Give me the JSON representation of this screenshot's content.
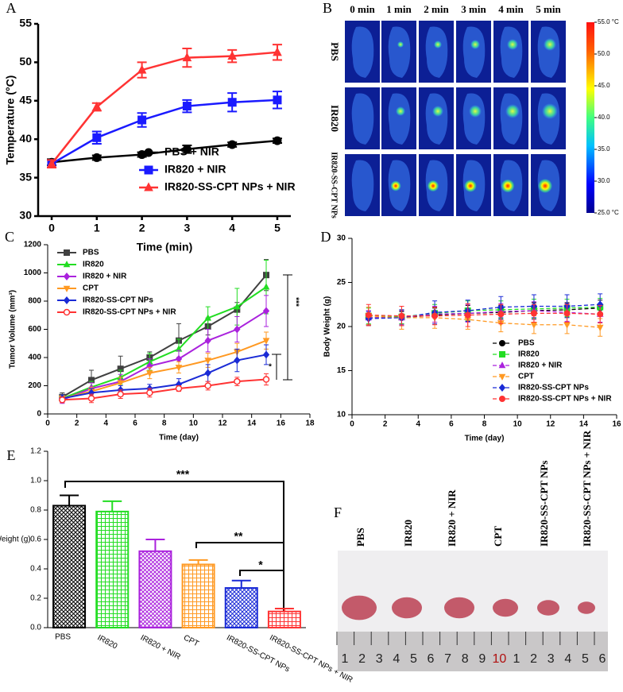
{
  "chart_data": [
    {
      "type": "line",
      "panel": "A",
      "xlabel": "Time (min)",
      "ylabel": "Temperature (°C)",
      "x": [
        0,
        1,
        2,
        3,
        4,
        5
      ],
      "xlim": [
        -0.3,
        5.3
      ],
      "xticks": [
        0,
        1,
        2,
        3,
        4,
        5
      ],
      "ylim": [
        30,
        55
      ],
      "yticks": [
        30,
        35,
        40,
        45,
        50,
        55
      ],
      "line_style": "solid",
      "legend": "lower right",
      "series": [
        {
          "name": "PBS + NIR",
          "color": "#000000",
          "marker": "circle",
          "values": [
            37.0,
            37.6,
            38.0,
            38.7,
            39.3,
            39.8
          ],
          "errors": [
            0.4,
            0.3,
            0.3,
            0.5,
            0.3,
            0.3
          ]
        },
        {
          "name": "IR820 + NIR",
          "color": "#1a1aff",
          "marker": "square",
          "values": [
            36.8,
            40.2,
            42.5,
            44.3,
            44.8,
            45.1
          ],
          "errors": [
            0.5,
            0.8,
            0.9,
            0.8,
            1.2,
            1.1
          ]
        },
        {
          "name": "IR820-SS-CPT NPs  + NIR",
          "color": "#ff3333",
          "marker": "triangle",
          "values": [
            36.8,
            44.2,
            49.0,
            50.6,
            50.8,
            51.3
          ],
          "errors": [
            0.5,
            0.5,
            1.0,
            1.2,
            0.8,
            1.0
          ]
        }
      ]
    },
    {
      "type": "line",
      "panel": "C",
      "xlabel": "Time (day)",
      "ylabel": "Tumor Volume (mm³)",
      "x": [
        1,
        3,
        5,
        7,
        9,
        11,
        13,
        15
      ],
      "xlim": [
        0,
        18
      ],
      "xticks": [
        0,
        2,
        4,
        6,
        8,
        10,
        12,
        14,
        16,
        18
      ],
      "ylim": [
        0,
        1200
      ],
      "yticks": [
        0,
        200,
        400,
        600,
        800,
        1000,
        1200
      ],
      "line_style": "solid",
      "legend": "upper left",
      "annotations": [
        "***",
        "*"
      ],
      "series": [
        {
          "name": "PBS",
          "color": "#404040",
          "marker": "square",
          "values": [
            120,
            240,
            320,
            400,
            520,
            620,
            740,
            985
          ],
          "errors": [
            30,
            70,
            90,
            40,
            120,
            60,
            50,
            110
          ]
        },
        {
          "name": "IR820",
          "color": "#22dd22",
          "marker": "triangle",
          "values": [
            110,
            190,
            260,
            370,
            460,
            680,
            760,
            900
          ],
          "errors": [
            25,
            40,
            50,
            60,
            70,
            80,
            130,
            190
          ]
        },
        {
          "name": "IR820 + NIR",
          "color": "#aa22dd",
          "marker": "diamond",
          "values": [
            100,
            180,
            230,
            340,
            390,
            520,
            600,
            730
          ],
          "errors": [
            25,
            40,
            50,
            50,
            60,
            80,
            90,
            110
          ]
        },
        {
          "name": "CPT",
          "color": "#ff9922",
          "marker": "tri-down",
          "values": [
            110,
            160,
            220,
            290,
            330,
            380,
            440,
            520
          ],
          "errors": [
            20,
            30,
            40,
            40,
            40,
            50,
            60,
            60
          ]
        },
        {
          "name": "IR820-SS-CPT NPs",
          "color": "#1a2bd6",
          "marker": "diamond",
          "values": [
            110,
            150,
            170,
            180,
            210,
            290,
            380,
            420
          ],
          "errors": [
            25,
            30,
            30,
            30,
            40,
            60,
            80,
            70
          ]
        },
        {
          "name": "IR820-SS-CPT NPs + NIR",
          "color": "#ff3333",
          "marker": "open-circle",
          "values": [
            100,
            110,
            140,
            150,
            180,
            200,
            230,
            245
          ],
          "errors": [
            20,
            30,
            30,
            30,
            20,
            30,
            30,
            40
          ]
        }
      ]
    },
    {
      "type": "line",
      "panel": "D",
      "xlabel": "Time (day)",
      "ylabel": "Body Weight (g)",
      "x": [
        1,
        3,
        5,
        7,
        9,
        11,
        13,
        15
      ],
      "xlim": [
        0,
        16
      ],
      "xticks": [
        0,
        2,
        4,
        6,
        8,
        10,
        12,
        14,
        16
      ],
      "ylim": [
        10,
        30
      ],
      "yticks": [
        10,
        15,
        20,
        25,
        30
      ],
      "line_style": "dashed",
      "legend": "lower right",
      "series": [
        {
          "name": "PBS",
          "color": "#000000",
          "marker": "circle",
          "values": [
            21.0,
            21.0,
            21.3,
            21.5,
            21.6,
            21.8,
            21.9,
            22.1
          ],
          "errors": [
            0.8,
            0.7,
            0.8,
            0.9,
            0.8,
            0.9,
            0.8,
            0.9
          ]
        },
        {
          "name": "IR820",
          "color": "#22dd22",
          "marker": "square",
          "values": [
            21.2,
            21.1,
            21.5,
            21.8,
            21.9,
            22.0,
            22.1,
            22.2
          ],
          "errors": [
            0.9,
            0.8,
            1.0,
            1.1,
            1.0,
            1.1,
            1.0,
            1.0
          ]
        },
        {
          "name": "IR820 + NIR",
          "color": "#aa22dd",
          "marker": "triangle",
          "values": [
            21.0,
            21.0,
            21.4,
            21.5,
            21.7,
            21.8,
            21.6,
            21.4
          ],
          "errors": [
            0.8,
            0.8,
            0.9,
            1.0,
            0.9,
            1.0,
            1.0,
            0.9
          ]
        },
        {
          "name": "CPT",
          "color": "#ff9922",
          "marker": "tri-down",
          "values": [
            21.2,
            21.0,
            21.0,
            20.8,
            20.4,
            20.2,
            20.2,
            19.9
          ],
          "errors": [
            1.0,
            1.3,
            1.2,
            1.1,
            1.0,
            1.0,
            1.0,
            1.0
          ]
        },
        {
          "name": "IR820-SS-CPT NPs",
          "color": "#1a2bd6",
          "marker": "diamond",
          "values": [
            20.9,
            21.0,
            21.6,
            21.8,
            22.2,
            22.3,
            22.3,
            22.5
          ],
          "errors": [
            0.8,
            0.9,
            1.3,
            1.2,
            1.2,
            1.3,
            1.3,
            1.2
          ]
        },
        {
          "name": "IR820-SS-CPT NPs + NIR",
          "color": "#ff3333",
          "marker": "circle",
          "values": [
            21.3,
            21.2,
            21.2,
            21.3,
            21.4,
            21.5,
            21.5,
            21.4
          ],
          "errors": [
            1.2,
            1.1,
            1.0,
            1.3,
            1.1,
            1.0,
            1.0,
            1.0
          ]
        }
      ]
    },
    {
      "type": "bar",
      "panel": "E",
      "ylabel": "Tumor Weight (g)",
      "categories": [
        "PBS",
        "IR820",
        "IR820 + NIR",
        "CPT",
        "IR820-SS-CPT NPs",
        "IR820-SS-CPT NPs + NIR"
      ],
      "values": [
        0.83,
        0.79,
        0.52,
        0.43,
        0.27,
        0.11
      ],
      "errors": [
        0.07,
        0.07,
        0.08,
        0.03,
        0.05,
        0.02
      ],
      "colors": [
        "#000000",
        "#22dd22",
        "#aa22dd",
        "#ff9922",
        "#1a2bd6",
        "#ff3333"
      ],
      "ylim": [
        0,
        1.2
      ],
      "yticks": [
        {
          "value": 0,
          "label": "0.0"
        },
        0.2,
        0.4,
        0.6,
        0.8,
        {
          "value": 1,
          "label": "1.0"
        },
        1.2
      ],
      "annotations": [
        "***",
        "**",
        "*"
      ]
    }
  ],
  "thermal_images": {
    "panel": "B",
    "times": [
      "0 min",
      "1 min",
      "2 min",
      "3 min",
      "4 min",
      "5 min"
    ],
    "rows": [
      "PBS",
      "IR820",
      "IR820-SS-CPT NPs"
    ],
    "colorbar": {
      "lim": [
        25,
        55
      ],
      "ticks": [
        {
          "value": 55,
          "label": "55.0 °C"
        },
        {
          "value": 50,
          "label": "50.0"
        },
        {
          "value": 45,
          "label": "45.0"
        },
        {
          "value": 40,
          "label": "40.0"
        },
        {
          "value": 35,
          "label": "35.0"
        },
        {
          "value": 30,
          "label": "30.0"
        },
        {
          "value": 25,
          "label": "25.0 °C"
        }
      ]
    }
  },
  "tumor_photo": {
    "panel": "F",
    "labels": [
      "PBS",
      "IR820",
      "IR820 + NIR",
      "CPT",
      "IR820-SS-CPT NPs",
      "IR820-SS-CPT NPs + NIR"
    ],
    "ruler": [
      1,
      2,
      3,
      4,
      5,
      6,
      7,
      8,
      9,
      10,
      1,
      2,
      3,
      4,
      5,
      6
    ]
  }
}
